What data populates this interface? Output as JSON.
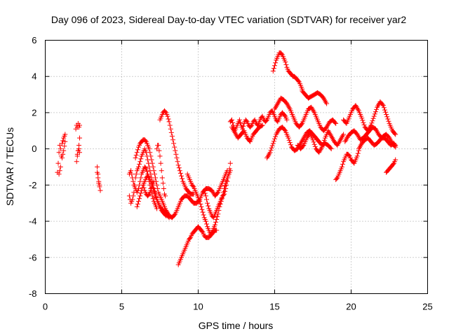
{
  "chart_data": {
    "type": "scatter",
    "title": "Day 096 of 2023, Sidereal Day-to-day VTEC variation (SDTVAR) for receiver yar2",
    "xlabel": "GPS time / hours",
    "ylabel": "SDTVAR / TECUs",
    "xlim": [
      0,
      25
    ],
    "ylim": [
      -8,
      6
    ],
    "xticks": [
      0,
      5,
      10,
      15,
      20,
      25
    ],
    "yticks": [
      -8,
      -6,
      -4,
      -2,
      0,
      2,
      4,
      6
    ],
    "xtick_labels": [
      "0",
      "5",
      "10",
      "15",
      "20",
      "25"
    ],
    "ytick_labels": [
      "-8",
      "-6",
      "-4",
      "-2",
      "0",
      "2",
      "4",
      "6"
    ],
    "grid": true,
    "marker": "+",
    "color": "#ff0000",
    "series": [
      {
        "name": "s01",
        "x": [
          0.8,
          0.85,
          0.9,
          0.95,
          1.0
        ],
        "y": [
          -1.3,
          -0.8,
          -0.2,
          0.2,
          0.0
        ]
      },
      {
        "name": "s02",
        "x": [
          0.9,
          1.0,
          1.05,
          1.1,
          1.2,
          1.3
        ],
        "y": [
          -1.4,
          -1.0,
          -0.4,
          0.3,
          0.6,
          0.8
        ]
      },
      {
        "name": "s03",
        "x": [
          1.1,
          1.2,
          1.3
        ],
        "y": [
          -0.5,
          -0.1,
          0.4
        ]
      },
      {
        "name": "s04",
        "x": [
          2.0,
          2.05,
          2.1,
          2.15,
          2.2,
          2.25
        ],
        "y": [
          1.1,
          1.3,
          1.2,
          1.4,
          1.2,
          1.3
        ]
      },
      {
        "name": "s05",
        "x": [
          2.05,
          2.1,
          2.15,
          2.2,
          2.25
        ],
        "y": [
          -0.7,
          -0.4,
          -0.1,
          0.2,
          0.6
        ]
      },
      {
        "name": "s06",
        "x": [
          2.1,
          2.15,
          2.2,
          2.25
        ],
        "y": [
          -0.3,
          -0.1,
          0.0,
          -0.2
        ]
      },
      {
        "name": "s07",
        "x": [
          3.4,
          3.45,
          3.5,
          3.55,
          3.6
        ],
        "y": [
          -1.0,
          -1.4,
          -1.8,
          -2.0,
          -2.3
        ]
      },
      {
        "name": "s08",
        "x": [
          3.4,
          3.45,
          3.5,
          3.55
        ],
        "y": [
          -1.3,
          -1.6,
          -1.9,
          -2.1
        ]
      },
      {
        "name": "s09",
        "x": [
          5.5,
          5.6,
          5.7,
          5.8,
          5.9,
          6.0,
          6.1,
          6.2,
          6.3,
          6.4,
          6.5,
          6.6,
          6.7,
          6.8,
          6.9,
          7.0,
          7.1,
          7.2,
          7.3,
          7.4,
          7.5,
          7.6,
          7.7,
          7.8,
          7.9
        ],
        "y": [
          -2.6,
          -3.0,
          -2.8,
          -2.4,
          -1.6,
          -1.2,
          -1.0,
          -0.7,
          -0.4,
          -0.2,
          0.0,
          -0.2,
          -0.6,
          -1.0,
          -1.4,
          -1.8,
          -2.2,
          -2.5,
          -2.8,
          -3.0,
          -3.2,
          -3.4,
          -3.5,
          -3.6,
          -3.7
        ]
      },
      {
        "name": "s10",
        "x": [
          5.5,
          5.6,
          5.7,
          5.8,
          5.9,
          6.0,
          6.1,
          6.2,
          6.3,
          6.4,
          6.5,
          6.6,
          6.7,
          6.8,
          6.9,
          7.0,
          7.1,
          7.2,
          7.3
        ],
        "y": [
          -1.4,
          -1.2,
          -1.6,
          -2.0,
          -2.2,
          -2.4,
          -2.2,
          -1.8,
          -1.4,
          -1.2,
          -1.0,
          -1.1,
          -1.4,
          -1.8,
          -2.2,
          -2.6,
          -2.9,
          -3.1,
          -3.3
        ]
      },
      {
        "name": "s11",
        "x": [
          5.9,
          6.0,
          6.1,
          6.2,
          6.3,
          6.4,
          6.5,
          6.6,
          6.7,
          6.8,
          6.9,
          7.0,
          7.1,
          7.2,
          7.3,
          7.4,
          7.5,
          7.6,
          7.7,
          7.8,
          7.9,
          8.0
        ],
        "y": [
          -0.5,
          -0.2,
          0.1,
          0.3,
          0.4,
          0.5,
          0.5,
          0.4,
          0.2,
          0.0,
          -0.4,
          -0.8,
          -1.2,
          -1.6,
          -2.0,
          -2.4,
          -2.6,
          -2.8,
          -3.0,
          -3.2,
          -3.4,
          -3.6
        ]
      },
      {
        "name": "s12",
        "x": [
          6.0,
          6.1,
          6.2,
          6.3,
          6.4,
          6.5,
          6.6,
          6.7,
          6.8,
          6.9,
          7.0,
          7.1,
          7.2,
          7.3,
          7.4,
          7.5,
          7.6,
          7.7,
          7.8,
          7.9,
          8.0,
          8.1
        ],
        "y": [
          -3.2,
          -2.9,
          -2.6,
          -2.3,
          -2.0,
          -1.8,
          -1.6,
          -1.5,
          -1.6,
          -1.8,
          -2.0,
          -2.3,
          -2.6,
          -2.8,
          -3.0,
          -3.2,
          -3.3,
          -3.4,
          -3.5,
          -3.6,
          -3.7,
          -3.8
        ]
      },
      {
        "name": "s13",
        "x": [
          6.4,
          6.5,
          6.6,
          6.7,
          6.8,
          6.9,
          7.0,
          7.1
        ],
        "y": [
          -2.0,
          -2.3,
          -2.5,
          -2.6,
          -2.5,
          -2.3,
          -2.0,
          -1.8
        ]
      },
      {
        "name": "s14",
        "x": [
          7.3,
          7.35,
          7.4,
          7.45,
          7.5,
          7.55,
          7.6,
          7.65,
          7.7,
          7.75,
          7.8,
          7.85
        ],
        "y": [
          0.0,
          0.2,
          0.2,
          -0.1,
          -0.4,
          -0.8,
          -1.2,
          -1.6,
          -1.9,
          -2.2,
          -2.5,
          -2.6
        ]
      },
      {
        "name": "s15",
        "x": [
          7.5,
          7.6,
          7.7,
          7.8,
          7.9,
          8.0,
          8.1,
          8.2,
          8.3,
          8.4,
          8.5,
          8.6,
          8.7,
          8.8,
          8.9,
          9.0,
          9.1,
          9.2,
          9.3,
          9.4,
          9.5,
          9.6,
          9.7
        ],
        "y": [
          1.6,
          1.8,
          2.0,
          2.1,
          2.0,
          1.8,
          1.5,
          1.1,
          0.7,
          0.3,
          -0.1,
          -0.5,
          -0.9,
          -1.2,
          -1.5,
          -1.8,
          -2.0,
          -2.2,
          -2.3,
          -2.4,
          -2.5,
          -2.5,
          -2.5
        ]
      },
      {
        "name": "s16",
        "x": [
          7.9,
          8.1,
          8.3,
          8.5,
          8.7,
          8.9,
          9.1,
          9.3,
          9.5,
          9.7,
          9.9,
          10.1,
          10.3,
          10.5,
          10.7,
          10.9,
          11.1,
          11.3,
          11.5,
          11.7,
          11.9
        ],
        "y": [
          -3.4,
          -3.7,
          -3.8,
          -3.6,
          -3.2,
          -2.8,
          -2.6,
          -2.6,
          -2.8,
          -3.0,
          -3.0,
          -2.8,
          -2.4,
          -2.2,
          -2.2,
          -2.3,
          -2.6,
          -2.4,
          -2.0,
          -1.6,
          -1.2
        ]
      },
      {
        "name": "s17",
        "x": [
          8.7,
          8.8,
          8.9,
          9.0,
          9.1,
          9.2,
          9.3,
          9.4,
          9.5,
          9.6,
          9.7,
          9.8,
          9.9,
          10.0,
          10.1,
          10.2,
          10.3,
          10.4,
          10.5,
          10.6,
          10.7,
          10.8,
          10.9,
          11.0,
          11.1,
          11.2
        ],
        "y": [
          -6.4,
          -6.2,
          -6.0,
          -5.8,
          -5.6,
          -5.4,
          -5.2,
          -5.0,
          -4.9,
          -4.7,
          -4.6,
          -4.5,
          -4.4,
          -4.3,
          -4.4,
          -4.5,
          -4.6,
          -4.8,
          -4.9,
          -4.9,
          -4.9,
          -4.8,
          -4.7,
          -4.6,
          -4.5,
          -4.5
        ]
      },
      {
        "name": "s18",
        "x": [
          9.3,
          9.4,
          9.5,
          9.6,
          9.7,
          9.8,
          9.9,
          10.0,
          10.1,
          10.2,
          10.3,
          10.4,
          10.5,
          10.6,
          10.7,
          10.8,
          10.9,
          11.0,
          11.1,
          11.2,
          11.3,
          11.4,
          11.5,
          11.6,
          11.7,
          11.8,
          11.9,
          12.0,
          12.1
        ],
        "y": [
          -1.4,
          -1.6,
          -1.8,
          -2.0,
          -2.1,
          -2.3,
          -2.5,
          -2.7,
          -2.9,
          -3.2,
          -3.5,
          -3.8,
          -4.0,
          -4.3,
          -4.5,
          -4.7,
          -4.6,
          -4.4,
          -4.2,
          -3.9,
          -3.6,
          -3.2,
          -2.9,
          -2.6,
          -2.2,
          -1.9,
          -1.6,
          -1.4,
          -1.2
        ]
      },
      {
        "name": "s19",
        "x": [
          10.4,
          10.5,
          10.6,
          10.7,
          10.8,
          10.9,
          11.0,
          11.1,
          11.2,
          11.3,
          11.4,
          11.5,
          11.6,
          11.7,
          11.8,
          11.9,
          12.0,
          12.1
        ],
        "y": [
          -2.3,
          -2.6,
          -3.0,
          -3.3,
          -3.5,
          -3.7,
          -3.8,
          -3.6,
          -3.4,
          -3.2,
          -3.0,
          -2.8,
          -2.6,
          -2.5,
          -2.2,
          -1.8,
          -1.4,
          -0.8
        ]
      },
      {
        "name": "s20",
        "x": [
          12.1,
          12.2,
          12.3,
          12.4,
          12.5,
          12.6,
          12.7,
          12.8,
          12.9,
          13.0,
          13.1,
          13.2,
          13.3,
          13.4,
          13.5,
          13.6,
          13.7,
          13.8,
          13.9,
          14.0,
          14.1,
          14.2,
          14.3,
          14.4,
          14.5,
          14.6,
          14.7,
          14.8,
          14.9,
          15.0,
          15.1,
          15.2,
          15.3,
          15.4,
          15.5,
          15.6,
          15.7,
          15.8
        ],
        "y": [
          1.5,
          1.6,
          1.3,
          1.0,
          1.2,
          1.4,
          1.6,
          1.3,
          1.1,
          1.4,
          1.6,
          1.5,
          1.3,
          1.2,
          1.3,
          1.5,
          1.6,
          1.4,
          1.3,
          1.5,
          1.7,
          1.8,
          1.6,
          1.5,
          1.6,
          1.8,
          2.0,
          2.1,
          2.0,
          1.8,
          1.6,
          1.5,
          1.7,
          1.9,
          2.0,
          1.9,
          1.8,
          1.6
        ]
      },
      {
        "name": "s21",
        "x": [
          12.2,
          12.4,
          12.6,
          12.8,
          13.0,
          13.2,
          13.4,
          13.6,
          13.8,
          14.0,
          14.2
        ],
        "y": [
          1.2,
          0.9,
          0.6,
          0.8,
          1.0,
          0.6,
          0.4,
          0.8,
          1.0,
          1.2,
          1.3
        ]
      },
      {
        "name": "s22",
        "x": [
          14.5,
          14.7,
          14.9,
          15.1,
          15.3,
          15.5,
          15.7,
          15.9,
          16.1,
          16.3,
          16.5,
          16.7,
          16.9,
          17.1,
          17.3,
          17.5,
          17.7,
          17.9,
          18.1,
          18.3,
          18.5,
          18.7
        ],
        "y": [
          -0.5,
          -0.2,
          0.3,
          0.8,
          1.1,
          1.2,
          1.0,
          0.6,
          0.1,
          -0.1,
          0.0,
          0.3,
          0.6,
          0.9,
          1.0,
          0.8,
          0.6,
          0.4,
          0.2,
          0.3,
          0.2,
          0.0
        ]
      },
      {
        "name": "s23",
        "x": [
          14.9,
          15.0,
          15.1,
          15.2,
          15.3,
          15.4,
          15.5,
          15.6,
          15.7,
          15.8,
          15.9,
          16.0,
          16.1,
          16.2,
          16.3,
          16.4,
          16.5,
          16.6,
          16.7,
          16.8
        ],
        "y": [
          4.3,
          4.6,
          4.9,
          5.1,
          5.3,
          5.3,
          5.2,
          5.0,
          4.8,
          4.5,
          4.3,
          4.2,
          4.1,
          4.0,
          4.0,
          3.9,
          3.8,
          3.7,
          3.5,
          3.3
        ]
      },
      {
        "name": "s24",
        "x": [
          16.8,
          17.0,
          17.2,
          17.4,
          17.6,
          17.8,
          18.0,
          18.2,
          18.4
        ],
        "y": [
          3.2,
          3.0,
          2.8,
          2.9,
          3.0,
          3.1,
          3.0,
          2.8,
          2.5
        ]
      },
      {
        "name": "s25",
        "x": [
          15.0,
          15.2,
          15.4,
          15.6,
          15.8,
          16.0,
          16.2,
          16.4,
          16.6,
          16.8,
          17.0,
          17.2,
          17.4,
          17.6,
          17.8,
          18.0,
          18.2,
          18.4,
          18.6,
          18.8,
          19.0
        ],
        "y": [
          2.2,
          2.5,
          2.8,
          2.7,
          2.5,
          2.2,
          1.8,
          1.4,
          1.2,
          1.4,
          1.8,
          2.2,
          2.3,
          2.0,
          1.6,
          1.2,
          1.0,
          1.2,
          1.5,
          1.6,
          1.4
        ]
      },
      {
        "name": "s26",
        "x": [
          16.5,
          16.7,
          16.9,
          17.1,
          17.3,
          17.5,
          17.7,
          17.9,
          18.1,
          18.3,
          18.5,
          18.7,
          18.9,
          19.1,
          19.3,
          19.5
        ],
        "y": [
          0.2,
          0.0,
          0.2,
          0.6,
          0.9,
          0.5,
          0.0,
          -0.2,
          0.1,
          0.6,
          1.0,
          0.7,
          0.4,
          0.2,
          0.5,
          0.8
        ]
      },
      {
        "name": "s27",
        "x": [
          19.0,
          19.1,
          19.2,
          19.3,
          19.4,
          19.5,
          19.6,
          19.7,
          19.8,
          19.9,
          20.0,
          20.1,
          20.2,
          20.3,
          20.4,
          20.5
        ],
        "y": [
          -1.7,
          -1.6,
          -1.4,
          -1.2,
          -1.0,
          -0.7,
          -0.5,
          -0.3,
          -0.3,
          -0.4,
          -0.6,
          -0.7,
          -0.8,
          -0.6,
          -0.4,
          -0.1
        ]
      },
      {
        "name": "s28",
        "x": [
          19.5,
          19.7,
          19.9,
          20.1,
          20.3,
          20.5,
          20.7,
          20.9,
          21.1,
          21.3,
          21.5,
          21.7,
          21.9,
          22.1,
          22.3,
          22.5,
          22.7,
          22.9
        ],
        "y": [
          1.6,
          1.4,
          1.8,
          2.2,
          2.4,
          2.1,
          1.7,
          1.2,
          1.0,
          1.3,
          1.8,
          2.3,
          2.6,
          2.4,
          1.9,
          1.4,
          1.0,
          0.8
        ]
      },
      {
        "name": "s29",
        "x": [
          19.6,
          19.8,
          20.0,
          20.2,
          20.4,
          20.6,
          20.8,
          21.0,
          21.2,
          21.4,
          21.6,
          21.8,
          22.0,
          22.2,
          22.4,
          22.6,
          22.8,
          22.9
        ],
        "y": [
          0.4,
          0.7,
          0.9,
          1.0,
          0.8,
          0.5,
          0.6,
          0.8,
          1.0,
          1.2,
          1.1,
          0.8,
          0.6,
          0.6,
          0.4,
          0.2,
          0.3,
          0.2
        ]
      },
      {
        "name": "s30",
        "x": [
          20.5,
          20.7,
          20.9,
          21.1,
          21.3,
          21.5,
          21.7,
          21.9,
          22.1,
          22.3,
          22.5,
          22.7,
          22.9
        ],
        "y": [
          0.0,
          0.3,
          0.5,
          0.6,
          0.4,
          0.2,
          0.3,
          0.5,
          0.7,
          0.8,
          0.6,
          0.3,
          0.1
        ]
      },
      {
        "name": "s31",
        "x": [
          22.3,
          22.4,
          22.5,
          22.6,
          22.7,
          22.8,
          22.9
        ],
        "y": [
          -1.3,
          -1.2,
          -1.1,
          -1.0,
          -0.9,
          -0.8,
          -0.6
        ]
      }
    ]
  }
}
